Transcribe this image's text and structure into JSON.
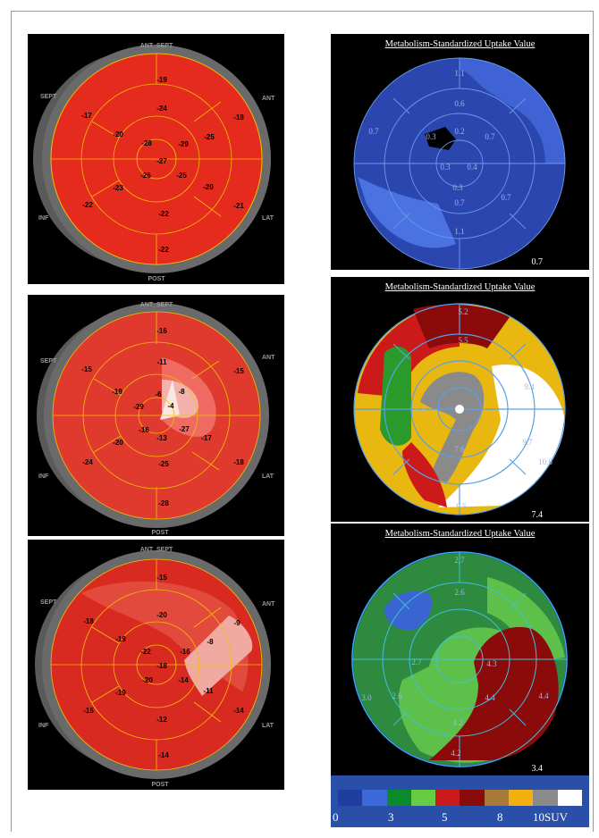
{
  "left_maps": [
    {
      "orientation": {
        "top": "ANT_SEPT",
        "top_right": "ANT",
        "right": "LAT",
        "bottom": "POST",
        "left": "INF",
        "top_left": "SEPT"
      },
      "values": [
        "-19",
        "-24",
        "-18",
        "-25",
        "-29",
        "-27",
        "-25",
        "-20",
        "-21",
        "-22",
        "-23",
        "-26",
        "-22",
        "-22",
        "-28",
        "-20",
        "-17"
      ]
    },
    {
      "orientation": {
        "top": "ANT_SEPT",
        "top_right": "ANT",
        "right": "LAT",
        "bottom": "POST",
        "left": "INF",
        "top_left": "SEPT"
      },
      "values": [
        "-16",
        "-11",
        "-15",
        "-8",
        "-6",
        "-4",
        "-27",
        "-13",
        "-17",
        "-18",
        "-25",
        "-28",
        "-20",
        "-24",
        "-16",
        "-29",
        "-19",
        "-15"
      ]
    },
    {
      "orientation": {
        "top": "ANT_SEPT",
        "top_right": "ANT",
        "right": "LAT",
        "bottom": "POST",
        "left": "INF",
        "top_left": "SEPT"
      },
      "values": [
        "-15",
        "-20",
        "-9",
        "-8",
        "-16",
        "-18",
        "-14",
        "-11",
        "-14",
        "-12",
        "-14",
        "-20",
        "-19",
        "-15",
        "-22",
        "-19",
        "-18"
      ]
    }
  ],
  "right_maps": [
    {
      "title": "Metabolism-Standardized Uptake Value",
      "corner_value": "0.7",
      "values": [
        "1.1",
        "0.6",
        "0.2",
        "0.7",
        "0.3",
        "0.3",
        "0.4",
        "0.7",
        "0.7",
        "1.1",
        "0.7",
        "0.3"
      ]
    },
    {
      "title": "Metabolism-Standardized Uptake Value",
      "corner_value": "7.4",
      "values": [
        "5.2",
        "5.5",
        "9.4",
        "9.7",
        "10.6",
        "7.6",
        "9.5",
        "6.5"
      ]
    },
    {
      "title": "Metabolism-Standardized Uptake Value",
      "corner_value": "3.4",
      "values": [
        "2.7",
        "2.6",
        "4.3",
        "4.4",
        "4.4",
        "4.2",
        "4.2",
        "2.7",
        "2.6",
        "3.0"
      ]
    }
  ],
  "legend": {
    "colors": [
      "#1f3ea0",
      "#3b6ad8",
      "#0a8a2a",
      "#66cc44",
      "#cc1a1a",
      "#8b0a0a",
      "#a87a3a",
      "#f2b010",
      "#8a8a8a",
      "#ffffff"
    ],
    "ticks": [
      "0",
      "3",
      "5",
      "8",
      "10SUV"
    ]
  }
}
